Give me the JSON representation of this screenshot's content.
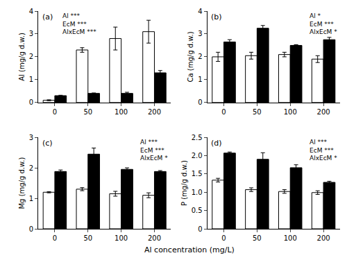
{
  "chart_data": [
    {
      "type": "bar",
      "title": "(a)",
      "ylabel": "Al (mg/g d.w.)",
      "annotations": [
        "Al ***",
        "EcM ***",
        "AlxEcM ***"
      ],
      "categories": [
        "0",
        "50",
        "100",
        "200"
      ],
      "series": [
        {
          "color": "#ffffff",
          "values": [
            0.1,
            2.3,
            2.8,
            3.1
          ],
          "errors": [
            0.02,
            0.1,
            0.5,
            0.5
          ]
        },
        {
          "color": "#000000",
          "values": [
            0.3,
            0.4,
            0.4,
            1.3
          ],
          "errors": [
            0.02,
            0.02,
            0.05,
            0.1
          ]
        }
      ],
      "ylim": [
        0,
        4
      ],
      "yticks": [
        0,
        1,
        2,
        3,
        4
      ],
      "grid": false
    },
    {
      "type": "bar",
      "title": "(b)",
      "ylabel": "Ca (mg/g d.w.)",
      "annotations": [
        "Al *",
        "EcM ***",
        "AlxEcM *"
      ],
      "categories": [
        "0",
        "50",
        "100",
        "200"
      ],
      "series": [
        {
          "color": "#ffffff",
          "values": [
            2.0,
            2.05,
            2.1,
            1.9
          ],
          "errors": [
            0.2,
            0.15,
            0.1,
            0.15
          ]
        },
        {
          "color": "#000000",
          "values": [
            2.65,
            3.25,
            2.5,
            2.75
          ],
          "errors": [
            0.1,
            0.12,
            0.03,
            0.1
          ]
        }
      ],
      "ylim": [
        0,
        4
      ],
      "yticks": [
        0,
        1,
        2,
        3,
        4
      ],
      "grid": false
    },
    {
      "type": "bar",
      "title": "(c)",
      "ylabel": "Mg (mg/g d.w.)",
      "xlabel": "Al concentration (mg/L)",
      "annotations": [
        "Al ***",
        "EcM ***",
        "AlxEcM *"
      ],
      "categories": [
        "0",
        "50",
        "100",
        "200"
      ],
      "series": [
        {
          "color": "#ffffff",
          "values": [
            1.2,
            1.3,
            1.15,
            1.1
          ],
          "errors": [
            0.02,
            0.05,
            0.08,
            0.08
          ]
        },
        {
          "color": "#000000",
          "values": [
            1.88,
            2.45,
            1.95,
            1.88
          ],
          "errors": [
            0.05,
            0.2,
            0.05,
            0.03
          ]
        }
      ],
      "ylim": [
        0,
        3
      ],
      "yticks": [
        0,
        1,
        2,
        3
      ],
      "grid": false
    },
    {
      "type": "bar",
      "title": "(d)",
      "ylabel": "P (mg/g d.w.)",
      "annotations": [
        "Al ***",
        "EcM ***",
        "AlxEcM *"
      ],
      "categories": [
        "0",
        "50",
        "100",
        "200"
      ],
      "series": [
        {
          "color": "#ffffff",
          "values": [
            1.33,
            1.07,
            1.02,
            0.99
          ],
          "errors": [
            0.05,
            0.05,
            0.05,
            0.05
          ]
        },
        {
          "color": "#000000",
          "values": [
            2.07,
            1.9,
            1.67,
            1.27
          ],
          "errors": [
            0.03,
            0.18,
            0.08,
            0.03
          ]
        }
      ],
      "ylim": [
        0,
        2.5
      ],
      "yticks": [
        0,
        0.5,
        {
          "value": 1,
          "label": "1.0"
        },
        1.5,
        {
          "value": 2,
          "label": "2.0"
        },
        2.5
      ],
      "grid": false
    }
  ]
}
